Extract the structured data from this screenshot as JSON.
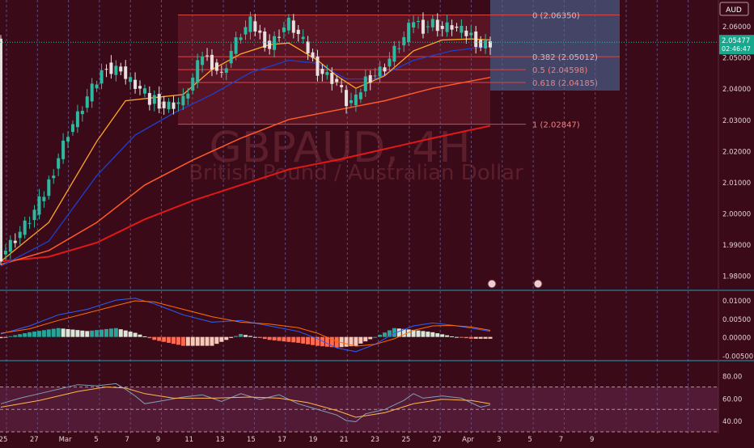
{
  "chart_data": {
    "type": "candlestick",
    "symbol_watermark": "GBPAUD, 4H",
    "watermark_subtitle": "British Pound / Australian Dollar",
    "currency_label": "AUD",
    "last_price": "2.05477",
    "countdown": "02:46:47",
    "colors": {
      "background": "#3b0a18",
      "up_candle": "#2fb8a0",
      "down_candle": "#e8e0e0",
      "ema_fast": "#ffa726",
      "ema_mid": "#1e3fd0",
      "ema_slow": "#ff5a2a",
      "ema_long": "#e01818",
      "fib": "#d84848",
      "grid": "#8a8cd0"
    },
    "y_axis": {
      "ylim": [
        1.9755,
        2.0683
      ],
      "ticks": [
        "2.06000",
        "2.05000",
        "2.04000",
        "2.03000",
        "2.02000",
        "2.01000",
        "2.00000",
        "1.99000",
        "1.98000"
      ]
    },
    "x_axis": {
      "ticks": [
        "25",
        "27",
        "Mar",
        "5",
        "7",
        "9",
        "11",
        "13",
        "15",
        "17",
        "19",
        "21",
        "23",
        "25",
        "27",
        "Apr",
        "3",
        "5",
        "7",
        "9"
      ]
    },
    "fibonacci": [
      {
        "ratio": "0",
        "price": "2.06350"
      },
      {
        "ratio": "0.382",
        "price": "2.05012"
      },
      {
        "ratio": "0.5",
        "price": "2.04598"
      },
      {
        "ratio": "0.618",
        "price": "2.04185"
      },
      {
        "ratio": "1",
        "price": "2.02847"
      }
    ],
    "price_path": [
      [
        0,
        1.9865
      ],
      [
        3,
        1.992
      ],
      [
        6,
        1.998
      ],
      [
        9,
        2.006
      ],
      [
        12,
        2.018
      ],
      [
        14,
        2.026
      ],
      [
        16,
        2.031
      ],
      [
        18,
        2.037
      ],
      [
        20,
        2.042
      ],
      [
        22,
        2.048
      ],
      [
        23,
        2.045
      ],
      [
        25,
        2.047
      ],
      [
        26,
        2.043
      ],
      [
        28,
        2.041
      ],
      [
        30,
        2.038
      ],
      [
        31,
        2.0355
      ],
      [
        32,
        2.037
      ],
      [
        34,
        2.034
      ],
      [
        36,
        2.035
      ],
      [
        38,
        2.036
      ],
      [
        40,
        2.043
      ],
      [
        42,
        2.051
      ],
      [
        44,
        2.048
      ],
      [
        46,
        2.044
      ],
      [
        48,
        2.052
      ],
      [
        50,
        2.0575
      ],
      [
        52,
        2.061
      ],
      [
        54,
        2.057
      ],
      [
        56,
        2.053
      ],
      [
        58,
        2.058
      ],
      [
        60,
        2.061
      ],
      [
        62,
        2.057
      ],
      [
        64,
        2.052
      ],
      [
        66,
        2.046
      ],
      [
        68,
        2.044
      ],
      [
        70,
        2.042
      ],
      [
        72,
        2.0355
      ],
      [
        74,
        2.036
      ],
      [
        76,
        2.043
      ],
      [
        78,
        2.0445
      ],
      [
        80,
        2.047
      ],
      [
        82,
        2.052
      ],
      [
        84,
        2.056
      ],
      [
        86,
        2.062
      ],
      [
        88,
        2.0595
      ],
      [
        90,
        2.061
      ],
      [
        92,
        2.059
      ],
      [
        94,
        2.06
      ],
      [
        96,
        2.058
      ],
      [
        98,
        2.057
      ],
      [
        100,
        2.0535
      ],
      [
        102,
        2.0547
      ]
    ],
    "ema_fast": [
      [
        0,
        1.9845
      ],
      [
        10,
        1.997
      ],
      [
        20,
        2.023
      ],
      [
        26,
        2.036
      ],
      [
        32,
        2.037
      ],
      [
        38,
        2.038
      ],
      [
        44,
        2.046
      ],
      [
        50,
        2.051
      ],
      [
        56,
        2.054
      ],
      [
        60,
        2.0545
      ],
      [
        66,
        2.049
      ],
      [
        70,
        2.044
      ],
      [
        74,
        2.04
      ],
      [
        80,
        2.044
      ],
      [
        86,
        2.052
      ],
      [
        92,
        2.0555
      ],
      [
        98,
        2.0558
      ],
      [
        102,
        2.0555
      ]
    ],
    "ema_mid": [
      [
        0,
        1.983
      ],
      [
        10,
        1.991
      ],
      [
        20,
        2.012
      ],
      [
        28,
        2.025
      ],
      [
        36,
        2.032
      ],
      [
        44,
        2.038
      ],
      [
        52,
        2.045
      ],
      [
        60,
        2.049
      ],
      [
        66,
        2.048
      ],
      [
        72,
        2.043
      ],
      [
        78,
        2.043
      ],
      [
        86,
        2.049
      ],
      [
        94,
        2.052
      ],
      [
        102,
        2.0535
      ]
    ],
    "ema_slow": [
      [
        0,
        1.9835
      ],
      [
        10,
        1.988
      ],
      [
        20,
        1.997
      ],
      [
        30,
        2.009
      ],
      [
        40,
        2.017
      ],
      [
        50,
        2.024
      ],
      [
        60,
        2.03
      ],
      [
        70,
        2.033
      ],
      [
        80,
        2.036
      ],
      [
        90,
        2.04
      ],
      [
        102,
        2.0435
      ]
    ],
    "ema_long": [
      [
        0,
        1.9845
      ],
      [
        10,
        1.986
      ],
      [
        20,
        1.9905
      ],
      [
        30,
        1.998
      ],
      [
        40,
        2.004
      ],
      [
        50,
        2.009
      ],
      [
        60,
        2.014
      ],
      [
        70,
        2.017
      ],
      [
        80,
        2.0205
      ],
      [
        90,
        2.024
      ],
      [
        102,
        2.028
      ]
    ],
    "macd": {
      "ticks": [
        "0.01000",
        "0.00500",
        "0.00000",
        "-0.00500"
      ],
      "ylim": [
        -0.006,
        0.012
      ],
      "macd_line": [
        [
          0,
          0.0008
        ],
        [
          6,
          0.003
        ],
        [
          12,
          0.006
        ],
        [
          18,
          0.0075
        ],
        [
          24,
          0.01
        ],
        [
          28,
          0.0105
        ],
        [
          32,
          0.009
        ],
        [
          38,
          0.006
        ],
        [
          44,
          0.004
        ],
        [
          50,
          0.0045
        ],
        [
          56,
          0.003
        ],
        [
          62,
          0.0015
        ],
        [
          66,
          -0.0005
        ],
        [
          70,
          -0.003
        ],
        [
          74,
          -0.004
        ],
        [
          78,
          -0.002
        ],
        [
          82,
          0.001
        ],
        [
          86,
          0.003
        ],
        [
          90,
          0.0038
        ],
        [
          94,
          0.0032
        ],
        [
          98,
          0.0024
        ],
        [
          102,
          0.0015
        ]
      ],
      "signal_line": [
        [
          0,
          0.001
        ],
        [
          6,
          0.0022
        ],
        [
          12,
          0.0045
        ],
        [
          18,
          0.0065
        ],
        [
          24,
          0.0085
        ],
        [
          28,
          0.0098
        ],
        [
          32,
          0.0095
        ],
        [
          38,
          0.0075
        ],
        [
          44,
          0.0055
        ],
        [
          50,
          0.004
        ],
        [
          56,
          0.0035
        ],
        [
          62,
          0.0025
        ],
        [
          66,
          0.001
        ],
        [
          70,
          -0.0012
        ],
        [
          74,
          -0.0025
        ],
        [
          78,
          -0.002
        ],
        [
          82,
          -0.0005
        ],
        [
          86,
          0.0018
        ],
        [
          90,
          0.003
        ],
        [
          94,
          0.0031
        ],
        [
          98,
          0.0027
        ],
        [
          102,
          0.0018
        ]
      ]
    },
    "rsi": {
      "ticks": [
        "80.00",
        "60.00",
        "40.00"
      ],
      "ylim": [
        30,
        92
      ],
      "bands": [
        70,
        50,
        30
      ],
      "rsi_line": [
        [
          0,
          55
        ],
        [
          4,
          60
        ],
        [
          8,
          64
        ],
        [
          12,
          68
        ],
        [
          16,
          72
        ],
        [
          20,
          71
        ],
        [
          24,
          73
        ],
        [
          26,
          68
        ],
        [
          28,
          62
        ],
        [
          30,
          55
        ],
        [
          34,
          58
        ],
        [
          38,
          61
        ],
        [
          42,
          63
        ],
        [
          46,
          57
        ],
        [
          50,
          64
        ],
        [
          54,
          59
        ],
        [
          58,
          63
        ],
        [
          62,
          55
        ],
        [
          66,
          50
        ],
        [
          70,
          45
        ],
        [
          72,
          40
        ],
        [
          74,
          39
        ],
        [
          76,
          46
        ],
        [
          80,
          50
        ],
        [
          84,
          58
        ],
        [
          86,
          64
        ],
        [
          88,
          60
        ],
        [
          92,
          62
        ],
        [
          96,
          60
        ],
        [
          100,
          52
        ],
        [
          102,
          54
        ]
      ],
      "ma_line": [
        [
          0,
          52
        ],
        [
          8,
          58
        ],
        [
          16,
          66
        ],
        [
          22,
          70
        ],
        [
          26,
          69
        ],
        [
          30,
          64
        ],
        [
          36,
          60
        ],
        [
          44,
          60
        ],
        [
          52,
          61
        ],
        [
          58,
          60
        ],
        [
          64,
          56
        ],
        [
          70,
          49
        ],
        [
          74,
          43
        ],
        [
          80,
          47
        ],
        [
          86,
          55
        ],
        [
          92,
          59
        ],
        [
          98,
          58
        ],
        [
          102,
          55
        ]
      ]
    }
  }
}
